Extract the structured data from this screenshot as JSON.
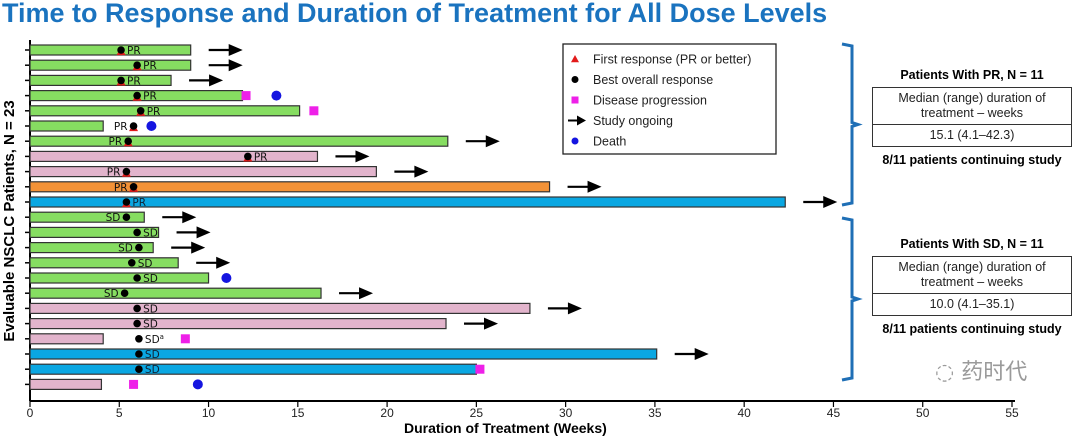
{
  "chart_data": {
    "type": "bar",
    "title": "Time to Response and Duration of Treatment for All Dose Levels",
    "xlabel": "Duration of Treatment (Weeks)",
    "ylabel": "Evaluable NSCLC Patients, N = 23",
    "xlim": [
      0,
      55
    ],
    "xticks": [
      0,
      5,
      10,
      15,
      20,
      25,
      30,
      35,
      40,
      45,
      50,
      55
    ],
    "colors": {
      "green": "#86dd61",
      "pink": "#e2b4cc",
      "orange": "#f39237",
      "blue": "#0aa7e2",
      "progression": "#ee20e8",
      "death": "#1515e0",
      "first_response": "#e21a1a",
      "bracket": "#1f6fb6",
      "title": "#1a73bf"
    },
    "patients": [
      {
        "group": "PR",
        "color": "green",
        "duration": 9.0,
        "best": 5.1,
        "label": "PR",
        "label_side": "right",
        "first_response": 5.1,
        "ongoing": true
      },
      {
        "group": "PR",
        "color": "green",
        "duration": 9.0,
        "best": 6.0,
        "label": "PR",
        "label_side": "right",
        "first_response": 6.0,
        "ongoing": true
      },
      {
        "group": "PR",
        "color": "green",
        "duration": 7.9,
        "best": 5.1,
        "label": "PR",
        "label_side": "right",
        "first_response": 5.1,
        "ongoing": true
      },
      {
        "group": "PR",
        "color": "green",
        "duration": 11.9,
        "best": 6.0,
        "label": "PR",
        "label_side": "right",
        "first_response": 6.0,
        "progression": 12.1,
        "death": 13.8
      },
      {
        "group": "PR",
        "color": "green",
        "duration": 15.1,
        "best": 6.2,
        "label": "PR",
        "label_side": "right",
        "first_response": 6.2,
        "progression": 15.9
      },
      {
        "group": "PR",
        "color": "green",
        "duration": 4.1,
        "best": 5.8,
        "label": "PR",
        "label_side": "left",
        "first_response": 5.8,
        "death": 6.8
      },
      {
        "group": "PR",
        "color": "green",
        "duration": 23.4,
        "best": 5.5,
        "label": "PR",
        "label_side": "left",
        "first_response": 5.5,
        "ongoing": true
      },
      {
        "group": "PR",
        "color": "pink",
        "duration": 16.1,
        "best": 12.2,
        "label": "PR",
        "label_side": "right",
        "first_response": 12.2,
        "ongoing": true
      },
      {
        "group": "PR",
        "color": "pink",
        "duration": 19.4,
        "best": 5.4,
        "label": "PR",
        "label_side": "left",
        "first_response": 5.4,
        "ongoing": true
      },
      {
        "group": "PR",
        "color": "orange",
        "duration": 29.1,
        "best": 5.8,
        "label": "PR",
        "label_side": "left",
        "first_response": 5.8,
        "ongoing": true
      },
      {
        "group": "PR",
        "color": "blue",
        "duration": 42.3,
        "best": 5.4,
        "label": "PR",
        "label_side": "right",
        "first_response": 5.4,
        "ongoing": true
      },
      {
        "group": "SD",
        "color": "green",
        "duration": 6.4,
        "best": 5.4,
        "label": "SD",
        "label_side": "left",
        "ongoing": true
      },
      {
        "group": "SD",
        "color": "green",
        "duration": 7.2,
        "best": 6.0,
        "label": "SD",
        "label_side": "right",
        "ongoing": true
      },
      {
        "group": "SD",
        "color": "green",
        "duration": 6.9,
        "best": 6.1,
        "label": "SD",
        "label_side": "left",
        "ongoing": true
      },
      {
        "group": "SD",
        "color": "green",
        "duration": 8.3,
        "best": 5.7,
        "label": "SD",
        "label_side": "right",
        "ongoing": true
      },
      {
        "group": "SD",
        "color": "green",
        "duration": 10.0,
        "best": 6.0,
        "label": "SD",
        "label_side": "right",
        "death": 11.0
      },
      {
        "group": "SD",
        "color": "green",
        "duration": 16.3,
        "best": 5.3,
        "label": "SD",
        "label_side": "left",
        "ongoing": true
      },
      {
        "group": "SD",
        "color": "pink",
        "duration": 28.0,
        "best": 6.0,
        "label": "SD",
        "label_side": "right",
        "ongoing": true
      },
      {
        "group": "SD",
        "color": "pink",
        "duration": 23.3,
        "best": 6.0,
        "label": "SD",
        "label_side": "right",
        "ongoing": true
      },
      {
        "group": "SD",
        "color": "pink",
        "duration": 4.1,
        "best": 6.1,
        "label": "SD",
        "label_sup": "a",
        "label_side": "right",
        "progression": 8.7
      },
      {
        "group": "SD",
        "color": "blue",
        "duration": 35.1,
        "best": 6.1,
        "label": "SD",
        "label_side": "right",
        "ongoing": true
      },
      {
        "group": "SD",
        "color": "blue",
        "duration": 25.0,
        "best": 6.1,
        "label": "SD",
        "label_side": "right",
        "progression": 25.2
      },
      {
        "group": "",
        "color": "pink",
        "duration": 4.0,
        "progression": 5.8,
        "death": 9.4
      }
    ],
    "legend": {
      "position": "top-center",
      "items": [
        {
          "symbol": "triangle",
          "label": "First response (PR or better)"
        },
        {
          "symbol": "dot",
          "label": "Best overall response"
        },
        {
          "symbol": "square",
          "label": "Disease progression"
        },
        {
          "symbol": "arrow",
          "label": "Study ongoing"
        },
        {
          "symbol": "circle",
          "label": "Death"
        }
      ]
    }
  },
  "summary": {
    "pr": {
      "heading": "Patients With PR, N = 11",
      "row_label": "Median (range) duration of treatment – weeks",
      "value": "15.1 (4.1–42.3)",
      "footer": "8/11 patients continuing study"
    },
    "sd": {
      "heading": "Patients With SD, N = 11",
      "row_label": "Median (range) duration of treatment – weeks",
      "value": "10.0 (4.1–35.1)",
      "footer": "8/11 patients continuing study"
    }
  },
  "watermark": "药时代"
}
